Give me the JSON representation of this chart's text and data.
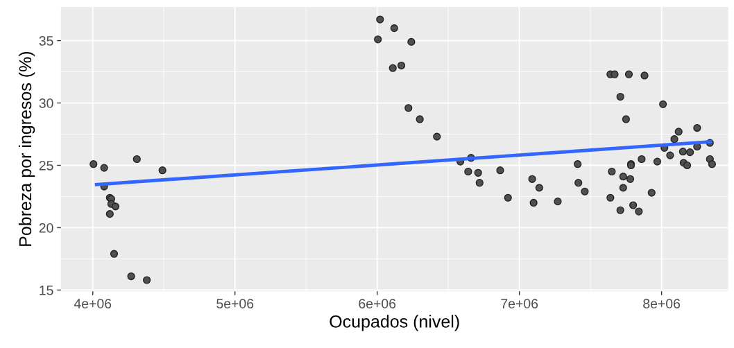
{
  "chart_data": {
    "type": "scatter",
    "xlabel": "Ocupados (nivel)",
    "ylabel": "Pobreza por ingresos (%)",
    "xlim": [
      3776000,
      8468000
    ],
    "ylim": [
      14.9,
      37.7
    ],
    "xticks": [
      {
        "value": 4000000,
        "label": "4e+06"
      },
      {
        "value": 5000000,
        "label": "5e+06"
      },
      {
        "value": 6000000,
        "label": "6e+06"
      },
      {
        "value": 7000000,
        "label": "7e+06"
      },
      {
        "value": 8000000,
        "label": "8e+06"
      }
    ],
    "yticks": [
      15,
      20,
      25,
      30,
      35
    ],
    "grid": true,
    "marker": "circle",
    "series": [
      {
        "color": "#505050",
        "x": [
          4005000,
          4080000,
          4080000,
          4120000,
          4130000,
          4130000,
          4160000,
          4120000,
          4150000,
          4270000,
          4380000,
          4310000,
          4490000,
          6020000,
          6120000,
          6005000,
          6240000,
          6110000,
          6170000,
          6220000,
          6300000,
          6420000,
          6585000,
          6660000,
          6640000,
          6710000,
          6720000,
          6865000,
          6920000,
          7090000,
          7140000,
          7100000,
          7270000,
          7410000,
          7415000,
          7460000,
          7640000,
          7670000,
          7770000,
          7880000,
          7710000,
          7750000,
          8010000,
          7650000,
          7640000,
          7730000,
          7780000,
          7730000,
          7710000,
          7800000,
          7840000,
          7785000,
          7785000,
          7860000,
          7930000,
          7970000,
          8020000,
          8060000,
          8090000,
          8120000,
          8150000,
          8155000,
          8180000,
          8200000,
          8250000,
          8250000,
          8340000,
          8340000,
          8355000
        ],
        "values": [
          25.1,
          24.8,
          23.3,
          22.4,
          22.3,
          21.9,
          21.7,
          21.1,
          17.9,
          16.1,
          15.8,
          25.5,
          24.6,
          36.7,
          36.0,
          35.1,
          34.9,
          32.8,
          33.0,
          29.6,
          28.7,
          27.3,
          25.3,
          25.6,
          24.5,
          24.4,
          23.6,
          24.6,
          22.4,
          23.9,
          23.2,
          22.0,
          22.1,
          25.1,
          23.6,
          22.9,
          32.3,
          32.3,
          32.3,
          32.2,
          30.5,
          28.7,
          29.9,
          24.5,
          22.4,
          24.1,
          23.9,
          23.2,
          21.4,
          21.8,
          21.3,
          25.1,
          25.0,
          25.5,
          22.8,
          25.3,
          26.4,
          25.8,
          27.1,
          27.7,
          26.1,
          25.2,
          25.0,
          26.05,
          28.0,
          26.5,
          26.8,
          25.5,
          25.1
        ]
      },
      {
        "type": "line",
        "color": "#3366ff",
        "marker": "none",
        "line_style": "solid",
        "x": [
          4015000,
          8355000
        ],
        "values": [
          23.45,
          26.9
        ]
      }
    ]
  }
}
